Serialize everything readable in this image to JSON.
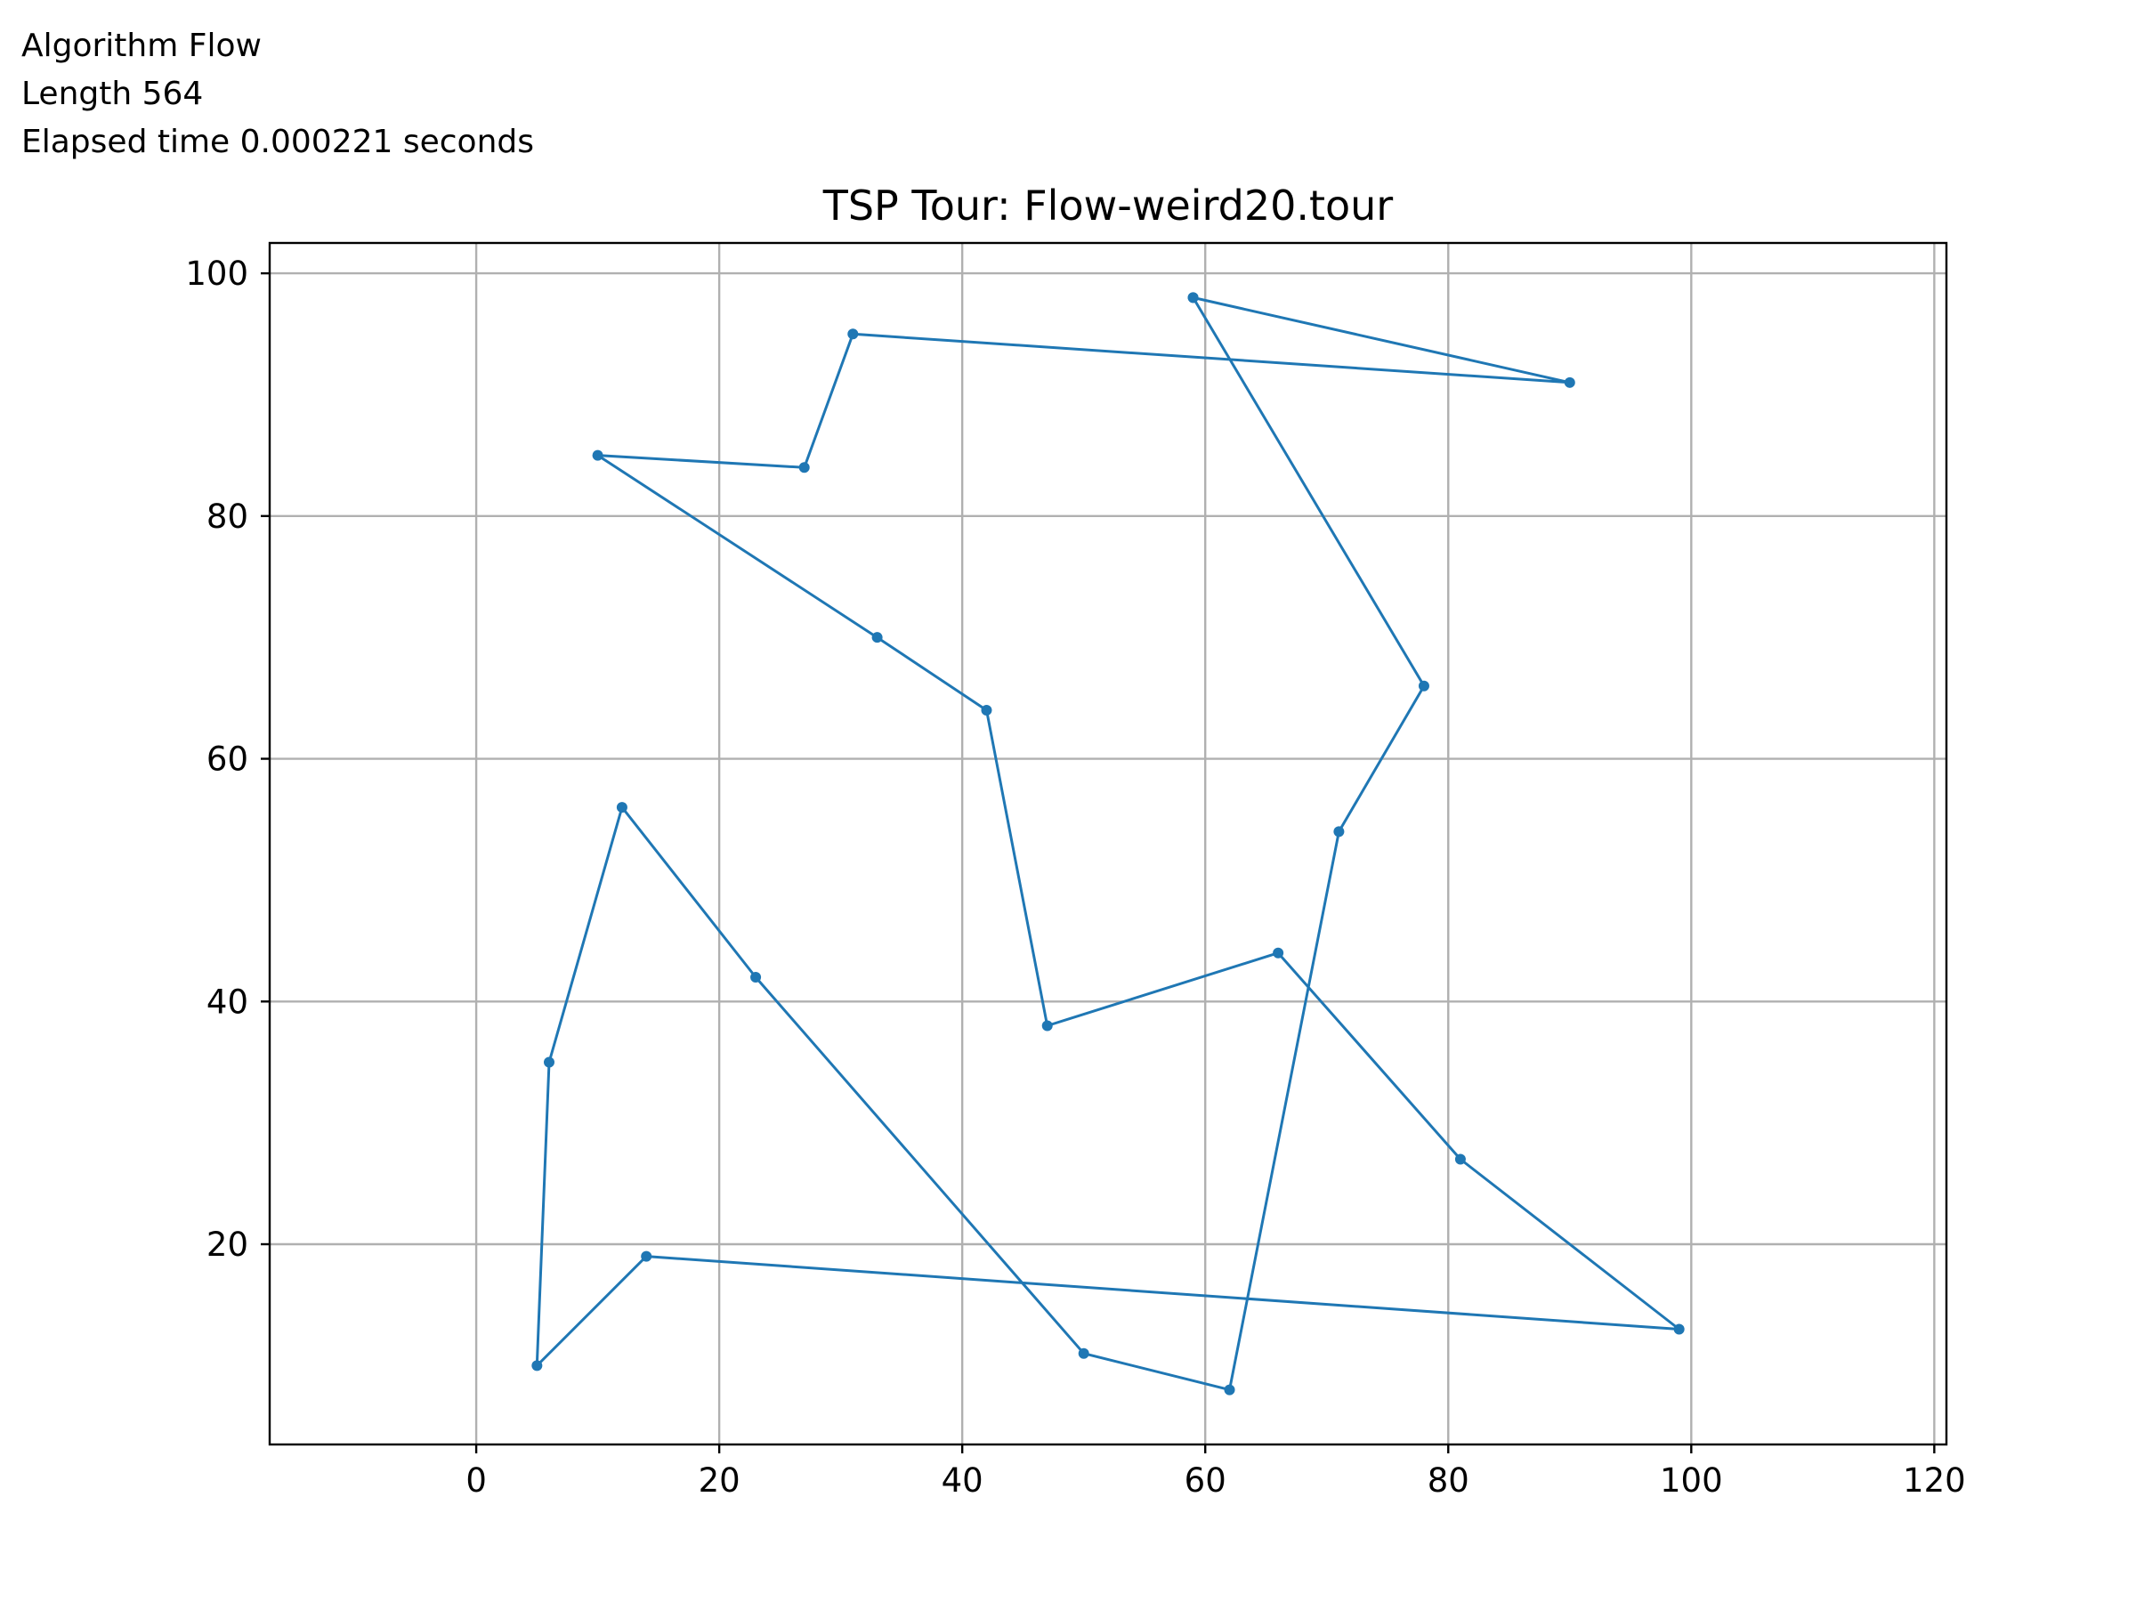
{
  "info": {
    "algorithm": "Algorithm Flow",
    "length": "Length 564",
    "elapsed": "Elapsed time 0.000221 seconds"
  },
  "chart_data": {
    "type": "line",
    "title": "TSP Tour: Flow-weird20.tour",
    "xlabel": "",
    "ylabel": "",
    "xlim": [
      -17,
      121
    ],
    "ylim": [
      3.5,
      102.5
    ],
    "x_ticks": [
      0,
      20,
      40,
      60,
      80,
      100,
      120
    ],
    "y_ticks": [
      20,
      40,
      60,
      80,
      100
    ],
    "grid": true,
    "legend": "none",
    "line_color": "#1f77b4",
    "series": [
      {
        "x": [
          59,
          90,
          31,
          27,
          10,
          33,
          42,
          47,
          66,
          81,
          99,
          14,
          5,
          6,
          12,
          23,
          50,
          62,
          71,
          78,
          59
        ],
        "y": [
          98,
          91,
          95,
          84,
          85,
          70,
          64,
          38,
          44,
          27,
          13,
          19,
          10,
          35,
          56,
          42,
          11,
          8,
          54,
          66,
          98
        ]
      }
    ]
  }
}
